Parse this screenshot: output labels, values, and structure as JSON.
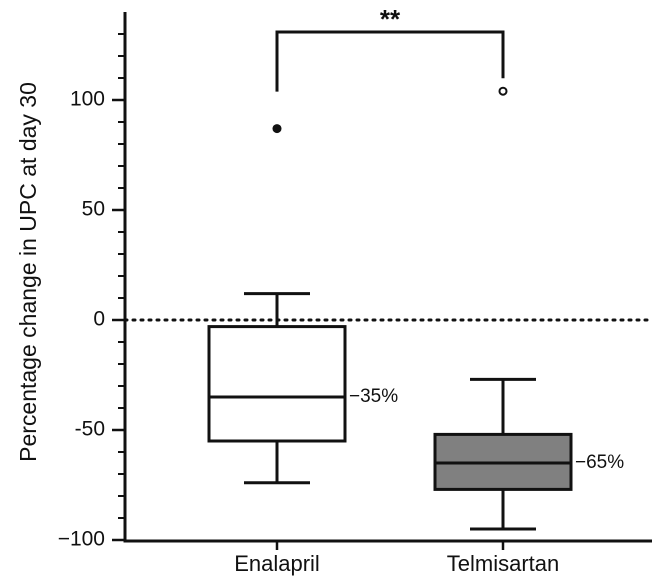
{
  "chart_data": {
    "type": "box",
    "ylabel": "Percentage change in UPC at day 30",
    "xlabel": "",
    "ylim": [
      -100,
      135
    ],
    "y_ticks": [
      {
        "value": 100,
        "label": "100"
      },
      {
        "value": 50,
        "label": "50"
      },
      {
        "value": 0,
        "label": "0"
      },
      {
        "value": -50,
        "label": "-50"
      },
      {
        "value": -100,
        "label": "−100"
      }
    ],
    "minor_tick_step": 10,
    "reference_line": {
      "y": 0,
      "style": "dotted"
    },
    "categories": [
      "Enalapril",
      "Telmisartan"
    ],
    "boxes": [
      {
        "name": "Enalapril",
        "whisker_low": -74,
        "q1": -55,
        "median": -35,
        "q3": -3,
        "whisker_high": 12,
        "median_label": "−35%",
        "fill": "#ffffff",
        "outliers": [
          {
            "y": 87,
            "marker": "filled"
          }
        ]
      },
      {
        "name": "Telmisartan",
        "whisker_low": -95,
        "q1": -77,
        "median": -65,
        "q3": -52,
        "whisker_high": -27,
        "median_label": "−65%",
        "fill": "#808080",
        "outliers": [
          {
            "y": 104,
            "marker": "open"
          }
        ]
      }
    ],
    "significance": {
      "between": [
        "Enalapril",
        "Telmisartan"
      ],
      "label": "**"
    }
  }
}
